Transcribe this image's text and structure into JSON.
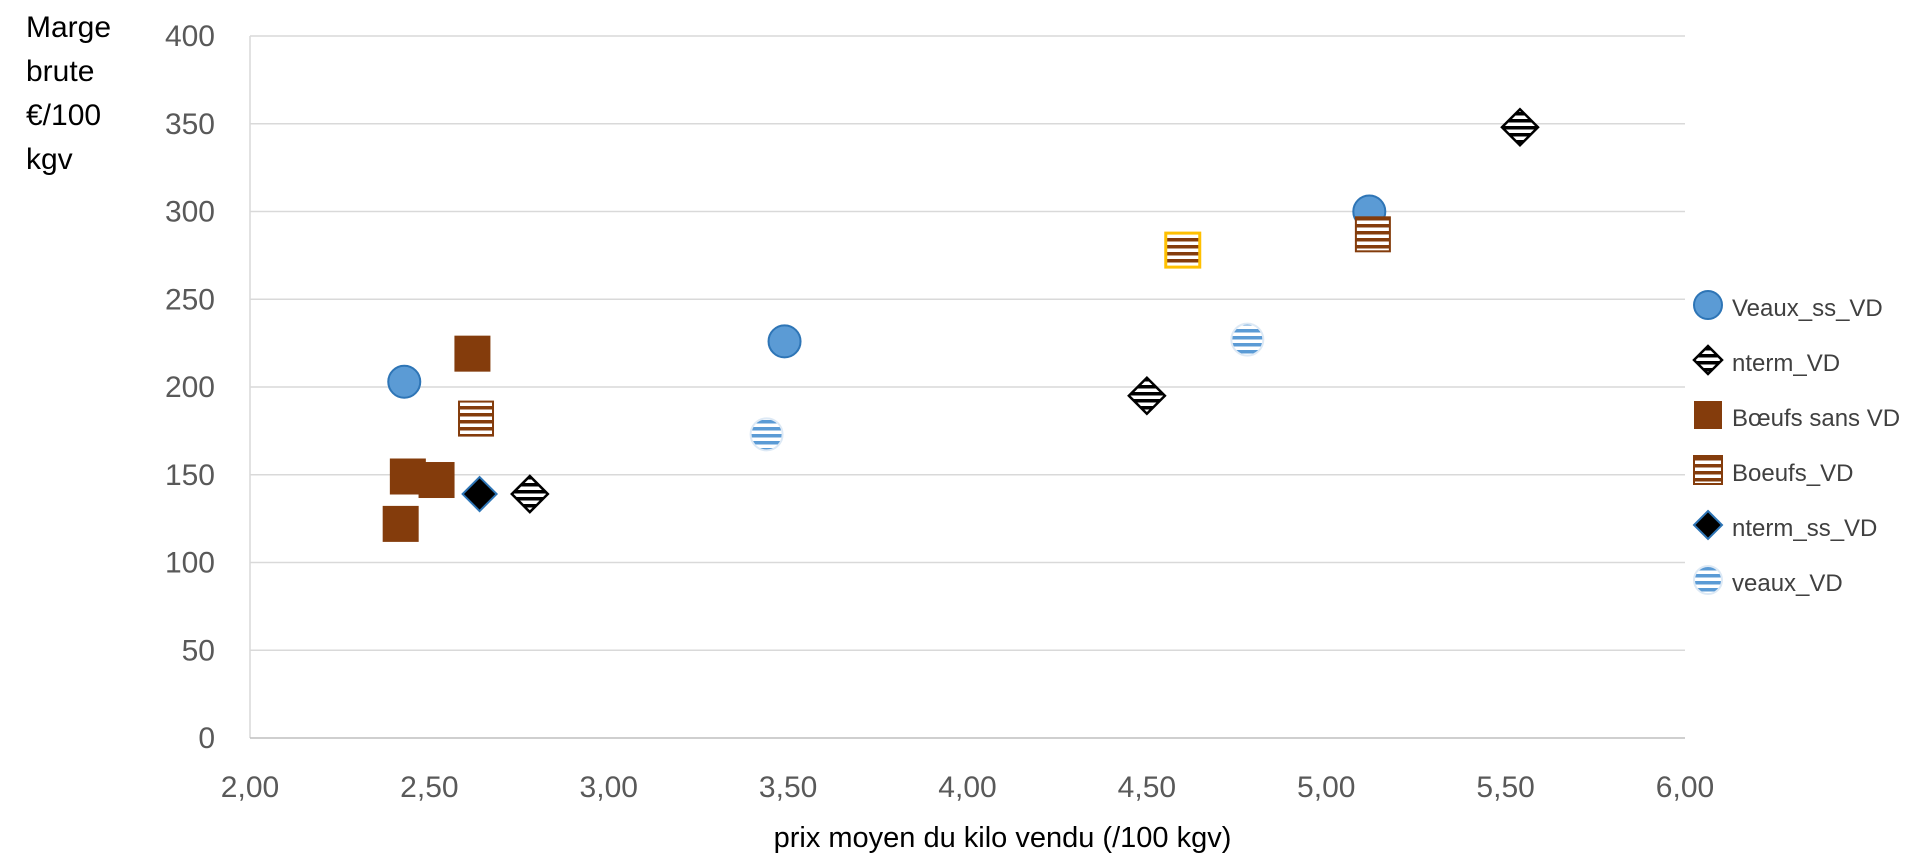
{
  "chart_data": {
    "type": "scatter",
    "title": "",
    "xlabel": "prix moyen du kilo vendu (/100 kgv)",
    "ylabel_lines": [
      "Marge",
      "brute",
      "€/100",
      "kgv"
    ],
    "xlim": [
      2.0,
      6.0
    ],
    "ylim": [
      0,
      400
    ],
    "x_ticks": [
      "2,00",
      "2,50",
      "3,00",
      "3,50",
      "4,00",
      "4,50",
      "5,00",
      "5,50",
      "6,00"
    ],
    "y_ticks": [
      "0",
      "50",
      "100",
      "150",
      "200",
      "250",
      "300",
      "350",
      "400"
    ],
    "grid": "horizontal",
    "legend_position": "right",
    "series": [
      {
        "name": "Veaux_ss_VD",
        "marker": "circle",
        "color": "#5B9BD5",
        "points": [
          [
            2.43,
            203
          ],
          [
            3.49,
            226
          ],
          [
            5.12,
            300
          ]
        ]
      },
      {
        "name": "nterm_VD",
        "marker": "diamond-striped",
        "color": "#000000",
        "points": [
          [
            2.78,
            139
          ],
          [
            4.5,
            195
          ],
          [
            5.54,
            348
          ]
        ]
      },
      {
        "name": "Bœufs sans VD",
        "marker": "square",
        "color": "#843C0C",
        "points": [
          [
            2.62,
            219
          ],
          [
            2.44,
            149
          ],
          [
            2.52,
            147
          ],
          [
            2.42,
            122
          ]
        ]
      },
      {
        "name": "Boeufs_VD",
        "marker": "square-striped",
        "color": "#843C0C",
        "points": [
          [
            2.63,
            182
          ],
          [
            5.13,
            287
          ],
          [
            4.6,
            278
          ]
        ]
      },
      {
        "name": "nterm_ss_VD",
        "marker": "diamond",
        "color": "#000000",
        "points": [
          [
            2.64,
            139
          ]
        ]
      },
      {
        "name": "veaux_VD",
        "marker": "circle-striped",
        "color": "#5B9BD5",
        "points": [
          [
            3.44,
            173
          ],
          [
            4.78,
            227
          ]
        ]
      }
    ],
    "highlight_point": {
      "series": "Boeufs_VD",
      "index": 2,
      "border_color": "#FFC000"
    }
  }
}
